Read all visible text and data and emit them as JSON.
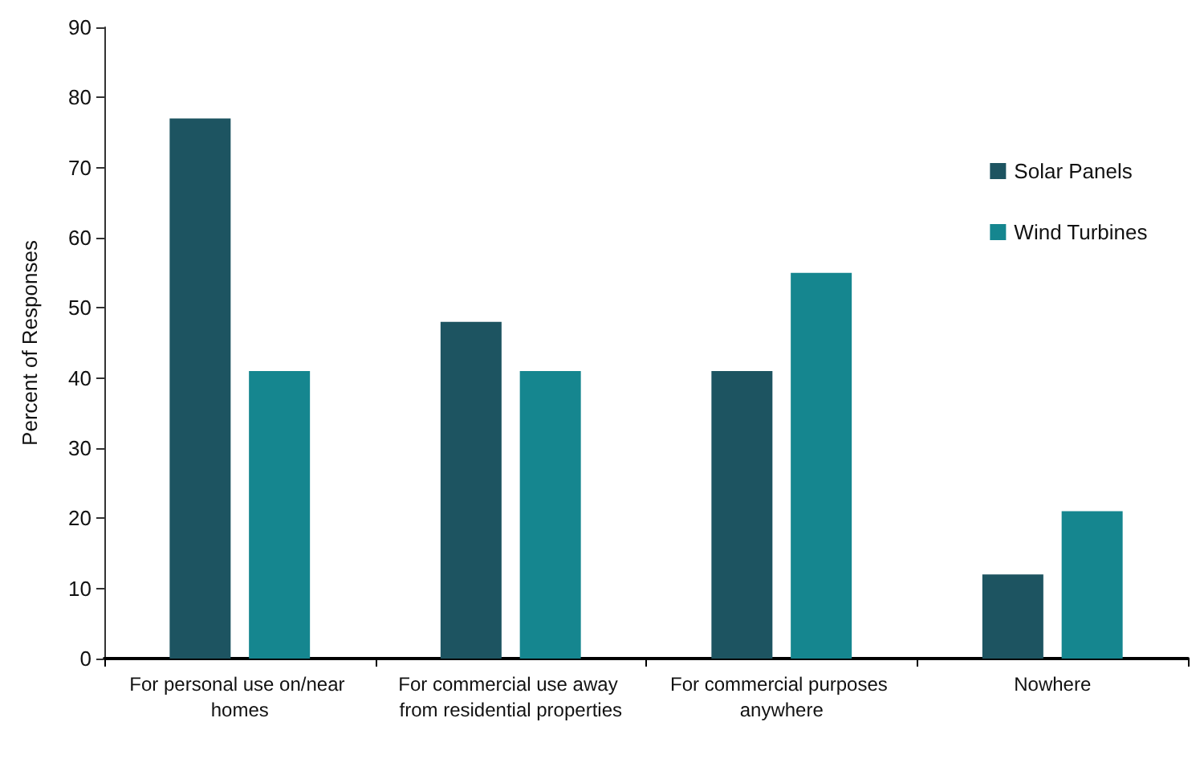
{
  "chart_data": {
    "type": "bar",
    "ylabel": "Percent of Responses",
    "categories": [
      "For personal use on/near homes",
      "For commercial use away from residential properties",
      "For commercial purposes anywhere",
      "Nowhere"
    ],
    "series": [
      {
        "name": "Solar Panels",
        "color": "#1d5461",
        "values": [
          77,
          48,
          41,
          12
        ]
      },
      {
        "name": "Wind Turbines",
        "color": "#15868f",
        "values": [
          41,
          41,
          55,
          21
        ]
      }
    ],
    "ylim": [
      0,
      90
    ],
    "yticks": [
      0,
      10,
      20,
      30,
      40,
      50,
      60,
      70,
      80,
      90
    ],
    "grid": false,
    "legend": "right"
  }
}
